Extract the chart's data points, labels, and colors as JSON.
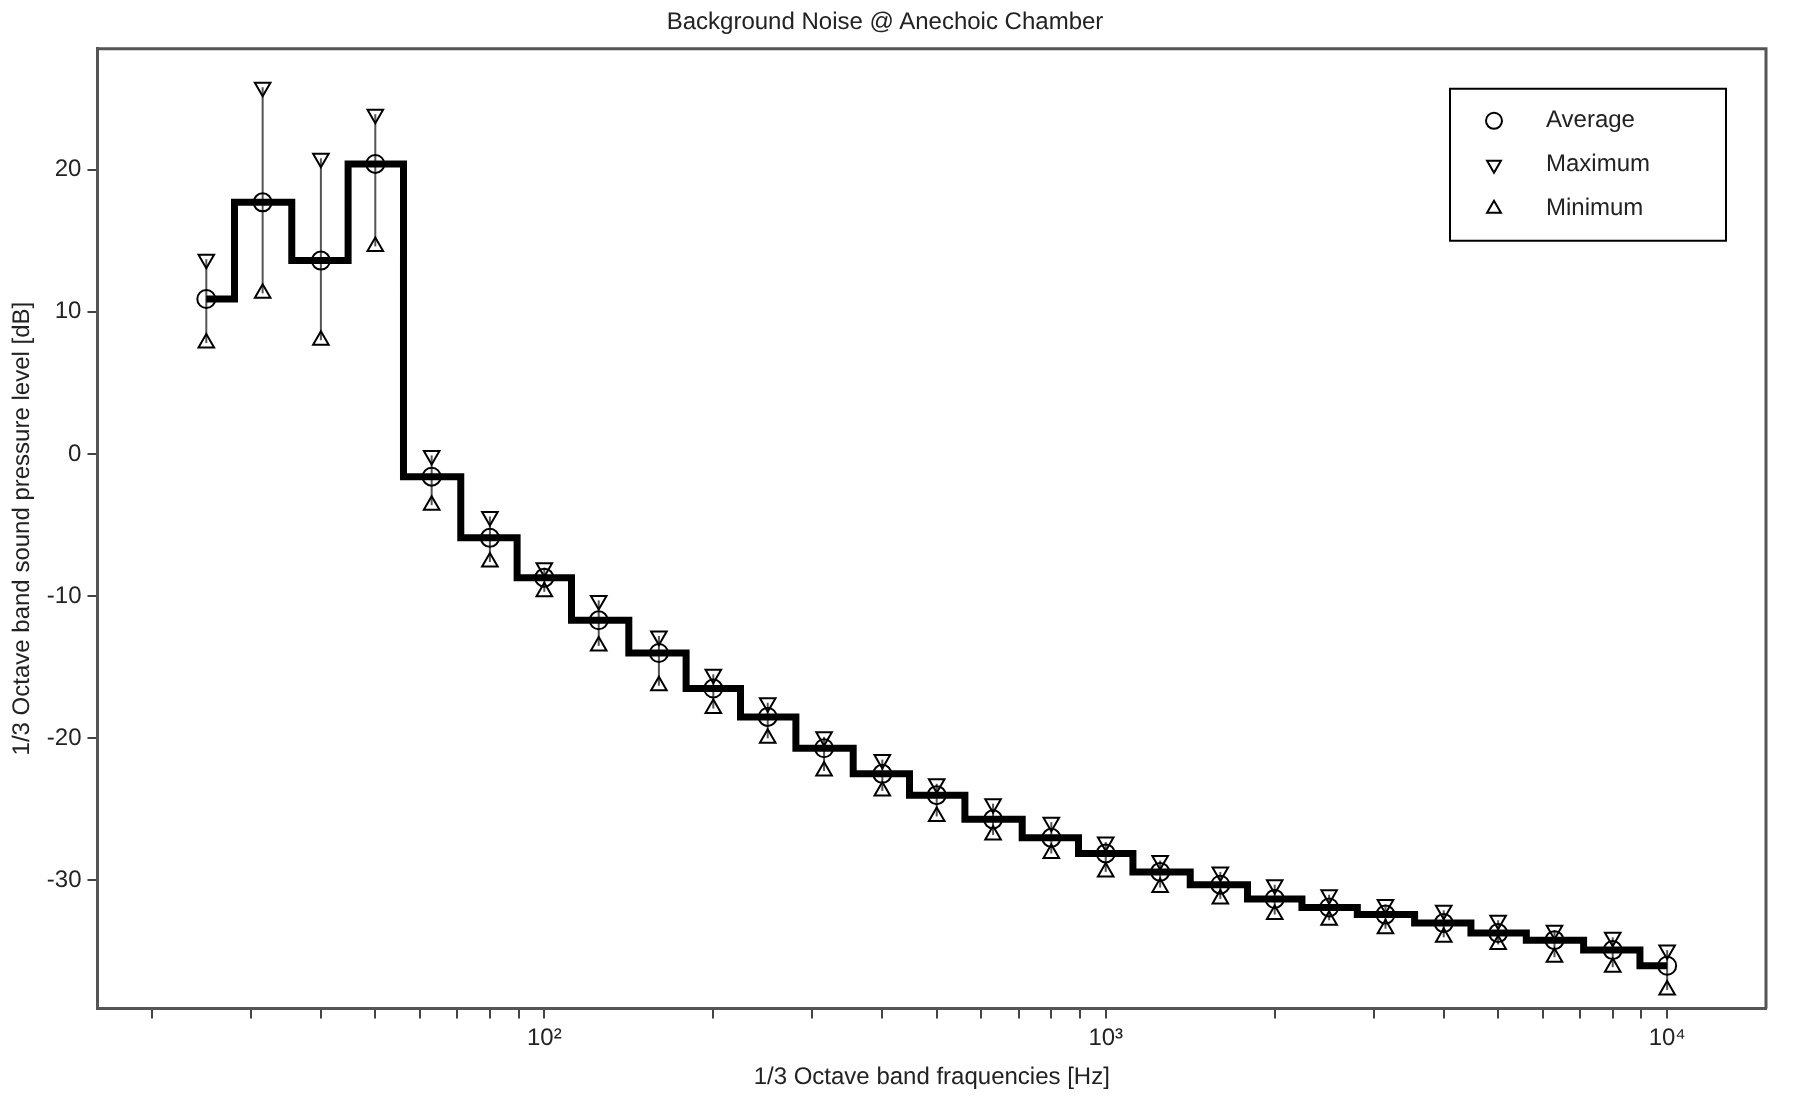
{
  "chart_data": {
    "type": "scatter",
    "title": "Background Noise @ Anechoic Chamber",
    "xlabel": "1/3 Octave band fraquencies [Hz]",
    "ylabel": "1/3 Octave band sound pressure level [dB]",
    "x": [
      25,
      31.5,
      40,
      50,
      63,
      80,
      100,
      125,
      160,
      200,
      250,
      315,
      400,
      500,
      630,
      800,
      1000,
      1250,
      1600,
      2000,
      2500,
      3150,
      4000,
      5000,
      6300,
      8000,
      10000
    ],
    "series": [
      {
        "type": "step",
        "color": "#000000",
        "marker": "none",
        "values": [
          10.9,
          17.7,
          13.6,
          20.4,
          -1.6,
          -5.9,
          -8.7,
          -11.7,
          -14.0,
          -16.5,
          -18.5,
          -20.7,
          -22.5,
          -24.0,
          -25.7,
          -27.0,
          -28.1,
          -29.4,
          -30.3,
          -31.3,
          -31.9,
          -32.4,
          -33.0,
          -33.7,
          -34.2,
          -34.9,
          -36.0
        ]
      },
      {
        "type": "scatter",
        "name": "Average",
        "color": "#000000",
        "marker": "circle",
        "values": [
          10.9,
          17.7,
          13.6,
          20.4,
          -1.6,
          -5.9,
          -8.7,
          -11.7,
          -14.0,
          -16.5,
          -18.5,
          -20.7,
          -22.5,
          -24.0,
          -25.7,
          -27.0,
          -28.1,
          -29.4,
          -30.3,
          -31.3,
          -31.9,
          -32.4,
          -33.0,
          -33.7,
          -34.2,
          -34.9,
          -36.0
        ],
        "errors": [
          [
            7.8,
            13.7
          ],
          [
            11.3,
            25.8
          ],
          [
            8.0,
            20.8
          ],
          [
            14.6,
            23.9
          ],
          [
            -3.6,
            -0.1
          ],
          [
            -7.6,
            -4.4
          ],
          [
            -9.7,
            -8.0
          ],
          [
            -13.5,
            -10.3
          ],
          [
            -16.3,
            -12.8
          ],
          [
            -17.9,
            -15.5
          ],
          [
            -20.0,
            -17.5
          ],
          [
            -22.3,
            -19.9
          ],
          [
            -23.7,
            -21.5
          ],
          [
            -25.5,
            -23.2
          ],
          [
            -26.8,
            -24.6
          ],
          [
            -28.1,
            -25.9
          ],
          [
            -29.4,
            -27.3
          ],
          [
            -30.5,
            -28.6
          ],
          [
            -31.3,
            -29.4
          ],
          [
            -32.4,
            -30.3
          ],
          [
            -32.8,
            -31.0
          ],
          [
            -33.4,
            -31.7
          ],
          [
            -34.0,
            -32.1
          ],
          [
            -34.5,
            -32.8
          ],
          [
            -35.4,
            -33.5
          ],
          [
            -36.1,
            -34.0
          ],
          [
            -37.7,
            -34.9
          ]
        ]
      },
      {
        "type": "scatter",
        "name": "Maximum",
        "color": "#000000",
        "marker": "triangle",
        "values": [
          13.7,
          25.8,
          20.8,
          23.9,
          -0.1,
          -4.4,
          -8.0,
          -10.3,
          -12.8,
          -15.5,
          -17.5,
          -19.9,
          -21.5,
          -23.2,
          -24.6,
          -25.9,
          -27.3,
          -28.6,
          -29.4,
          -30.3,
          -31.0,
          -31.7,
          -32.1,
          -32.8,
          -33.5,
          -34.0,
          -34.9
        ]
      },
      {
        "type": "scatter",
        "name": "Minimum",
        "color": "#000000",
        "marker": "triangle",
        "values": [
          7.8,
          11.3,
          8.0,
          14.6,
          -3.6,
          -7.6,
          -9.7,
          -13.5,
          -16.3,
          -17.9,
          -20.0,
          -22.3,
          -23.7,
          -25.5,
          -26.8,
          -28.1,
          -29.4,
          -30.5,
          -31.3,
          -32.4,
          -32.8,
          -33.4,
          -34.0,
          -34.5,
          -35.4,
          -36.1,
          -37.7
        ]
      }
    ],
    "log": "x",
    "xlim": [
      16,
      15000
    ],
    "ylim": [
      -39,
      28.5
    ],
    "xticks": [
      {
        "value": 20,
        "label": null
      },
      {
        "value": 30,
        "label": null
      },
      {
        "value": 40,
        "label": null
      },
      {
        "value": 50,
        "label": null
      },
      {
        "value": 60,
        "label": null
      },
      {
        "value": 70,
        "label": null
      },
      {
        "value": 80,
        "label": null
      },
      {
        "value": 90,
        "label": null
      },
      {
        "value": 100,
        "label": "10²"
      },
      {
        "value": 200,
        "label": null
      },
      {
        "value": 300,
        "label": null
      },
      {
        "value": 400,
        "label": null
      },
      {
        "value": 500,
        "label": null
      },
      {
        "value": 600,
        "label": null
      },
      {
        "value": 700,
        "label": null
      },
      {
        "value": 800,
        "label": null
      },
      {
        "value": 900,
        "label": null
      },
      {
        "value": 1000,
        "label": "10³"
      },
      {
        "value": 2000,
        "label": null
      },
      {
        "value": 3000,
        "label": null
      },
      {
        "value": 4000,
        "label": null
      },
      {
        "value": 5000,
        "label": null
      },
      {
        "value": 6000,
        "label": null
      },
      {
        "value": 7000,
        "label": null
      },
      {
        "value": 8000,
        "label": null
      },
      {
        "value": 9000,
        "label": null
      },
      {
        "value": 10000,
        "label": "10⁴"
      }
    ],
    "yticks": [
      -30,
      -20,
      -10,
      0,
      10,
      20
    ],
    "grid": false,
    "legend": "top right"
  }
}
